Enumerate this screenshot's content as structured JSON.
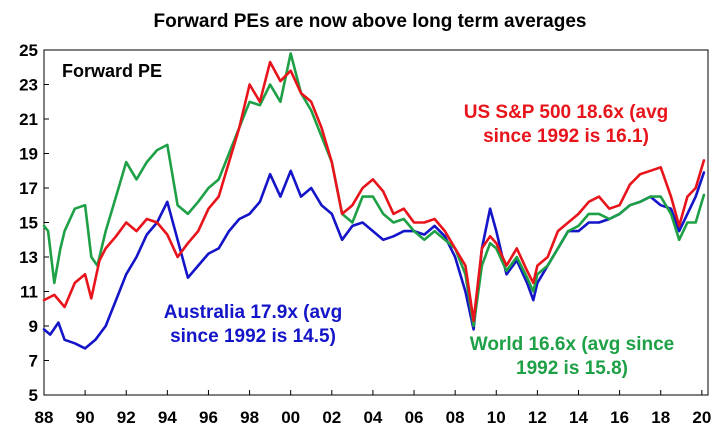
{
  "chart_data": {
    "type": "line",
    "title": "Forward PEs are now above long term averages",
    "ylabel_inplot": "Forward PE",
    "xlabel": "",
    "ylim": [
      5,
      25
    ],
    "xlim": [
      1988,
      2020.3
    ],
    "y_ticks": [
      5,
      7,
      9,
      11,
      13,
      15,
      17,
      19,
      21,
      23,
      25
    ],
    "x_ticks": [
      {
        "value": 1988,
        "label": "88"
      },
      {
        "value": 1990,
        "label": "90"
      },
      {
        "value": 1992,
        "label": "92"
      },
      {
        "value": 1994,
        "label": "94"
      },
      {
        "value": 1996,
        "label": "96"
      },
      {
        "value": 1998,
        "label": "98"
      },
      {
        "value": 2000,
        "label": "00"
      },
      {
        "value": 2002,
        "label": "02"
      },
      {
        "value": 2004,
        "label": "04"
      },
      {
        "value": 2006,
        "label": "06"
      },
      {
        "value": 2008,
        "label": "08"
      },
      {
        "value": 2010,
        "label": "10"
      },
      {
        "value": 2012,
        "label": "12"
      },
      {
        "value": 2014,
        "label": "14"
      },
      {
        "value": 2016,
        "label": "16"
      },
      {
        "value": 2018,
        "label": "18"
      },
      {
        "value": 2020,
        "label": "20"
      }
    ],
    "series": [
      {
        "name": "US S&P 500",
        "color": "#e8141b",
        "label_lines": [
          "US S&P 500 18.6x (avg",
          "since 1992 is 16.1)"
        ],
        "x": [
          1988,
          1988.5,
          1989,
          1989.5,
          1990,
          1990.3,
          1990.7,
          1991,
          1991.5,
          1992,
          1992.5,
          1993,
          1993.5,
          1994,
          1994.5,
          1995,
          1995.5,
          1996,
          1996.5,
          1997,
          1997.5,
          1998,
          1998.5,
          1999,
          1999.5,
          2000,
          2000.5,
          2001,
          2001.5,
          2002,
          2002.5,
          2003,
          2003.5,
          2004,
          2004.5,
          2005,
          2005.5,
          2006,
          2006.5,
          2007,
          2007.5,
          2008,
          2008.5,
          2008.9,
          2009.3,
          2009.7,
          2010,
          2010.5,
          2011,
          2011.5,
          2011.8,
          2012,
          2012.5,
          2013,
          2013.5,
          2014,
          2014.5,
          2015,
          2015.5,
          2016,
          2016.5,
          2017,
          2017.5,
          2018,
          2018.5,
          2018.9,
          2019.3,
          2019.7,
          2020.1
        ],
        "values": [
          10.5,
          10.8,
          10.1,
          11.5,
          12,
          10.6,
          12.8,
          13.5,
          14.2,
          15,
          14.5,
          15.2,
          15,
          14.3,
          13,
          13.8,
          14.5,
          15.8,
          16.5,
          18.5,
          20.5,
          23,
          22,
          24.3,
          23.2,
          23.8,
          22.5,
          22,
          20.5,
          18.5,
          15.5,
          16,
          17,
          17.5,
          16.8,
          15.5,
          15.8,
          15,
          15,
          15.2,
          14.5,
          13.5,
          12.5,
          9.3,
          13.5,
          14.2,
          13.8,
          12.5,
          13.5,
          12.2,
          11.5,
          12.5,
          13,
          14.5,
          15,
          15.5,
          16.2,
          16.5,
          15.8,
          16,
          17.2,
          17.8,
          18,
          18.2,
          16.5,
          14.8,
          16.5,
          17,
          18.6
        ]
      },
      {
        "name": "Australia",
        "color": "#1414c8",
        "label_lines": [
          "Australia 17.9x (avg",
          "since 1992 is 14.5)"
        ],
        "x": [
          1988,
          1988.3,
          1988.7,
          1989,
          1989.5,
          1990,
          1990.5,
          1991,
          1991.5,
          1992,
          1992.5,
          1993,
          1993.5,
          1994,
          1994.5,
          1995,
          1995.5,
          1996,
          1996.5,
          1997,
          1997.5,
          1998,
          1998.5,
          1999,
          1999.5,
          2000,
          2000.5,
          2001,
          2001.5,
          2002,
          2002.5,
          2003,
          2003.5,
          2004,
          2004.5,
          2005,
          2005.5,
          2006,
          2006.5,
          2007,
          2007.5,
          2008,
          2008.5,
          2008.9,
          2009.3,
          2009.7,
          2010,
          2010.5,
          2011,
          2011.5,
          2011.8,
          2012,
          2012.5,
          2013,
          2013.5,
          2014,
          2014.5,
          2015,
          2015.5,
          2016,
          2016.5,
          2017,
          2017.5,
          2018,
          2018.5,
          2018.9,
          2019.3,
          2019.7,
          2020.1
        ],
        "values": [
          8.8,
          8.5,
          9.2,
          8.2,
          8,
          7.7,
          8.2,
          9,
          10.5,
          12,
          13,
          14.3,
          15,
          16.2,
          14,
          11.8,
          12.5,
          13.2,
          13.5,
          14.5,
          15.2,
          15.5,
          16.2,
          17.8,
          16.5,
          18,
          16.5,
          17,
          16,
          15.5,
          14,
          14.8,
          15,
          14.5,
          14,
          14.2,
          14.5,
          14.5,
          14.3,
          14.8,
          14.2,
          13,
          11,
          8.8,
          13.5,
          15.8,
          14.5,
          12,
          12.8,
          11.5,
          10.5,
          11.5,
          12.5,
          13.5,
          14.5,
          14.5,
          15,
          15,
          15.2,
          15.5,
          16,
          16.2,
          16.5,
          16,
          15.8,
          14.5,
          15.5,
          16.5,
          17.9
        ]
      },
      {
        "name": "World",
        "color": "#1ea046",
        "label_lines": [
          "World 16.6x (avg since",
          "1992 is 15.8)"
        ],
        "x": [
          1988,
          1988.2,
          1988.5,
          1988.8,
          1989,
          1989.5,
          1990,
          1990.3,
          1990.6,
          1991,
          1991.5,
          1992,
          1992.5,
          1993,
          1993.5,
          1994,
          1994.5,
          1995,
          1995.5,
          1996,
          1996.5,
          1997,
          1997.5,
          1998,
          1998.5,
          1999,
          1999.5,
          2000,
          2000.5,
          2001,
          2001.5,
          2002,
          2002.5,
          2003,
          2003.5,
          2004,
          2004.5,
          2005,
          2005.5,
          2006,
          2006.5,
          2007,
          2007.5,
          2008,
          2008.5,
          2008.9,
          2009.3,
          2009.7,
          2010,
          2010.5,
          2011,
          2011.5,
          2011.8,
          2012,
          2012.5,
          2013,
          2013.5,
          2014,
          2014.5,
          2015,
          2015.5,
          2016,
          2016.5,
          2017,
          2017.5,
          2018,
          2018.5,
          2018.9,
          2019.3,
          2019.7,
          2020.1
        ],
        "values": [
          14.8,
          14.5,
          11.5,
          13.5,
          14.5,
          15.8,
          16,
          13,
          12.5,
          14.5,
          16.5,
          18.5,
          17.5,
          18.5,
          19.2,
          19.5,
          16,
          15.5,
          16.2,
          17,
          17.5,
          19,
          20.5,
          22,
          21.8,
          23,
          22,
          24.8,
          22.5,
          21.5,
          20,
          18.5,
          15.5,
          15,
          16.5,
          16.5,
          15.5,
          15,
          15.2,
          14.5,
          14,
          14.5,
          14,
          13.5,
          12,
          9,
          12.5,
          13.8,
          13.5,
          12.2,
          13,
          11.8,
          11,
          12,
          12.5,
          13.5,
          14.5,
          14.8,
          15.5,
          15.5,
          15.2,
          15.5,
          16,
          16.2,
          16.5,
          16.5,
          15.5,
          14,
          15,
          15,
          16.6
        ]
      }
    ]
  }
}
